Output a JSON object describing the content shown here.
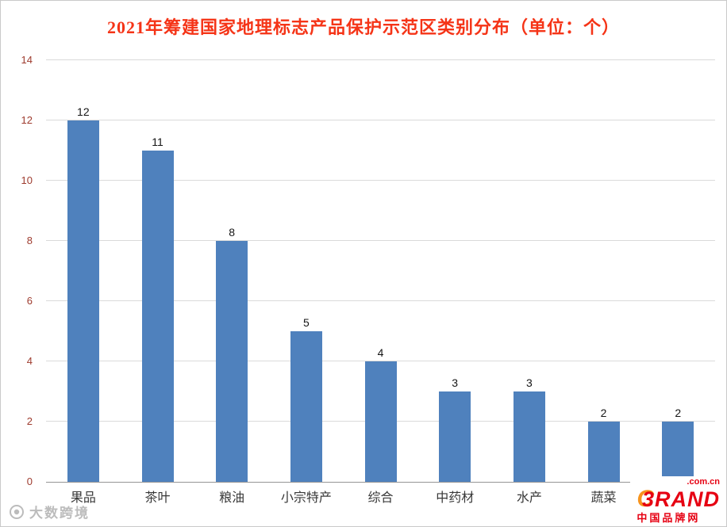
{
  "chart_data": {
    "type": "bar",
    "title": "2021年筹建国家地理标志产品保护示范区类别分布（单位：个）",
    "title_color": "#f53417",
    "categories": [
      "果品",
      "茶叶",
      "粮油",
      "小宗特产",
      "综合",
      "中药材",
      "水产",
      "蔬菜",
      ""
    ],
    "values": [
      12,
      11,
      8,
      5,
      4,
      3,
      3,
      2,
      2
    ],
    "ylim": [
      0,
      14
    ],
    "ytick_step": 2,
    "ytick_color": "#9e3b2e",
    "bar_color": "#4F81BD",
    "grid": true,
    "legend": "none",
    "xlabel": "",
    "ylabel": ""
  },
  "watermark": {
    "icon": "globe-logo-icon",
    "text": "大数跨境"
  },
  "brand": {
    "domain": ".com.cn",
    "mark": "C",
    "name": "3RAND",
    "caption": "中国品牌网"
  }
}
